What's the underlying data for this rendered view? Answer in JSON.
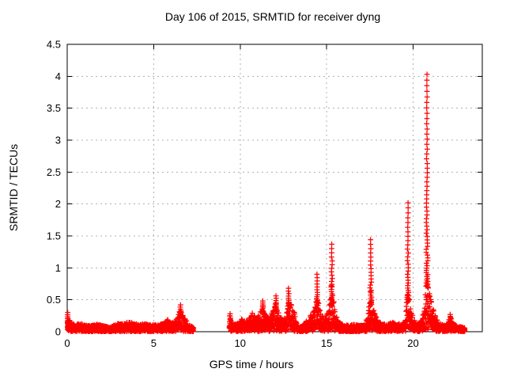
{
  "chart_data": {
    "type": "scatter",
    "title": "Day 106 of 2015, SRMTID for receiver dyng",
    "xlabel": "GPS time / hours",
    "ylabel": "SRMTID / TECUs",
    "xlim": [
      0,
      24
    ],
    "ylim": [
      0,
      4.5
    ],
    "xticks": [
      0,
      5,
      10,
      15,
      20
    ],
    "yticks": [
      0,
      0.5,
      1,
      1.5,
      2,
      2.5,
      3,
      3.5,
      4,
      4.5
    ],
    "grid": true,
    "legend": "none",
    "marker": "plus",
    "colors": {
      "points": "#ff0000",
      "grid": "#b0b0b0",
      "border": "#000000",
      "text": "#000000",
      "background": "#ffffff"
    },
    "x_data_range": [
      0.0,
      23.0
    ],
    "data_gap": [
      7.3,
      9.4
    ],
    "major_peaks": [
      [
        11.3,
        0.48
      ],
      [
        12.1,
        0.56
      ],
      [
        12.8,
        0.68
      ],
      [
        14.45,
        0.9
      ],
      [
        15.3,
        1.37
      ],
      [
        17.55,
        1.44
      ],
      [
        19.7,
        2.02
      ],
      [
        20.8,
        4.03
      ]
    ],
    "band_envelope_segments": [
      [
        [
          0.0,
          0.3
        ],
        [
          0.08,
          0.2
        ],
        [
          0.25,
          0.15
        ],
        [
          0.5,
          0.12
        ],
        [
          0.8,
          0.13
        ],
        [
          1.1,
          0.11
        ],
        [
          1.4,
          0.1
        ],
        [
          1.7,
          0.12
        ],
        [
          2.0,
          0.11
        ],
        [
          2.3,
          0.08
        ],
        [
          2.6,
          0.09
        ],
        [
          2.9,
          0.13
        ],
        [
          3.2,
          0.13
        ],
        [
          3.5,
          0.16
        ],
        [
          3.8,
          0.15
        ],
        [
          4.1,
          0.12
        ],
        [
          4.4,
          0.13
        ],
        [
          4.7,
          0.12
        ],
        [
          5.0,
          0.11
        ],
        [
          5.3,
          0.12
        ],
        [
          5.6,
          0.14
        ],
        [
          5.8,
          0.2
        ],
        [
          5.95,
          0.14
        ],
        [
          6.15,
          0.15
        ],
        [
          6.35,
          0.26
        ],
        [
          6.55,
          0.36
        ],
        [
          6.7,
          0.3
        ],
        [
          6.85,
          0.2
        ],
        [
          7.0,
          0.12
        ],
        [
          7.3,
          0.07
        ]
      ],
      [
        [
          9.4,
          0.26
        ],
        [
          9.55,
          0.15
        ],
        [
          9.75,
          0.12
        ],
        [
          9.95,
          0.15
        ],
        [
          10.1,
          0.21
        ],
        [
          10.3,
          0.17
        ],
        [
          10.5,
          0.21
        ],
        [
          10.7,
          0.3
        ],
        [
          10.9,
          0.22
        ],
        [
          11.1,
          0.27
        ],
        [
          11.3,
          0.44
        ],
        [
          11.45,
          0.3
        ],
        [
          11.6,
          0.24
        ],
        [
          11.75,
          0.29
        ],
        [
          11.9,
          0.34
        ],
        [
          12.05,
          0.48
        ],
        [
          12.2,
          0.36
        ],
        [
          12.35,
          0.24
        ],
        [
          12.5,
          0.2
        ],
        [
          12.65,
          0.24
        ],
        [
          12.8,
          0.58
        ],
        [
          12.95,
          0.48
        ],
        [
          13.1,
          0.38
        ],
        [
          13.25,
          0.17
        ],
        [
          13.4,
          0.07
        ],
        [
          13.6,
          0.1
        ],
        [
          13.8,
          0.16
        ],
        [
          14.0,
          0.22
        ],
        [
          14.2,
          0.34
        ],
        [
          14.4,
          0.56
        ],
        [
          14.55,
          0.45
        ],
        [
          14.7,
          0.26
        ],
        [
          14.85,
          0.24
        ],
        [
          15.0,
          0.3
        ],
        [
          15.15,
          0.42
        ],
        [
          15.3,
          0.85
        ],
        [
          15.45,
          0.45
        ],
        [
          15.6,
          0.26
        ],
        [
          15.75,
          0.16
        ],
        [
          16.0,
          0.11
        ],
        [
          16.3,
          0.1
        ],
        [
          16.6,
          0.12
        ],
        [
          16.9,
          0.1
        ],
        [
          17.2,
          0.12
        ],
        [
          17.4,
          0.25
        ],
        [
          17.55,
          0.75
        ],
        [
          17.7,
          0.38
        ],
        [
          17.85,
          0.26
        ],
        [
          18.0,
          0.19
        ],
        [
          18.2,
          0.13
        ],
        [
          18.5,
          0.12
        ],
        [
          18.8,
          0.16
        ],
        [
          19.1,
          0.12
        ],
        [
          19.35,
          0.14
        ],
        [
          19.55,
          0.25
        ],
        [
          19.7,
          0.75
        ],
        [
          19.85,
          0.38
        ],
        [
          20.0,
          0.24
        ],
        [
          20.15,
          0.15
        ],
        [
          20.35,
          0.15
        ],
        [
          20.55,
          0.25
        ],
        [
          20.7,
          0.55
        ],
        [
          20.8,
          0.9
        ],
        [
          20.9,
          0.7
        ],
        [
          21.05,
          0.5
        ],
        [
          21.2,
          0.32
        ],
        [
          21.35,
          0.2
        ],
        [
          21.55,
          0.13
        ],
        [
          21.8,
          0.1
        ],
        [
          22.0,
          0.14
        ],
        [
          22.15,
          0.25
        ],
        [
          22.3,
          0.15
        ],
        [
          22.5,
          0.1
        ],
        [
          22.75,
          0.09
        ],
        [
          23.0,
          0.06
        ]
      ]
    ],
    "peak_spikes": [
      {
        "x": 0.03,
        "top": 0.3,
        "base": 0.1
      },
      {
        "x": 6.55,
        "top": 0.42,
        "base": 0.22
      },
      {
        "x": 9.42,
        "top": 0.28,
        "base": 0.06
      },
      {
        "x": 11.3,
        "top": 0.48,
        "base": 0.3
      },
      {
        "x": 12.08,
        "top": 0.56,
        "base": 0.32
      },
      {
        "x": 12.8,
        "top": 0.68,
        "base": 0.4
      },
      {
        "x": 14.45,
        "top": 0.9,
        "base": 0.45
      },
      {
        "x": 15.3,
        "top": 1.37,
        "base": 0.5
      },
      {
        "x": 17.55,
        "top": 1.44,
        "base": 0.45
      },
      {
        "x": 19.7,
        "top": 2.02,
        "base": 0.5
      },
      {
        "x": 20.8,
        "top": 4.03,
        "base": 0.7
      },
      {
        "x": 22.15,
        "top": 0.27,
        "base": 0.1
      }
    ]
  }
}
